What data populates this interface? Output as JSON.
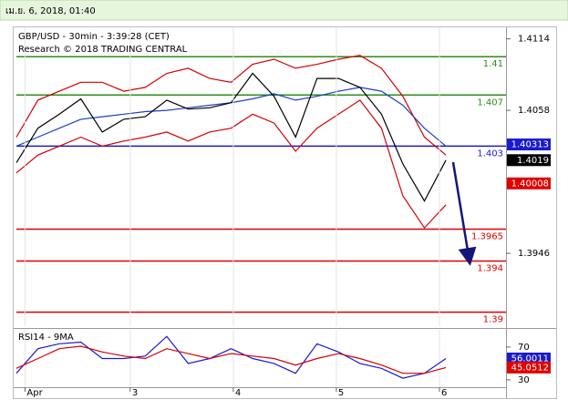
{
  "header": {
    "timestamp": "เม.ย. 6, 2018, 01:40"
  },
  "chart_data": [
    {
      "type": "line",
      "title": "GBP/USD - 30min - 3:39:28 (CET)",
      "subtitle": "Research © 2018 TRADING CENTRAL",
      "x": [
        0,
        10,
        20,
        30,
        40,
        50,
        60,
        70,
        80,
        90,
        100,
        110,
        120,
        130,
        140,
        150,
        160,
        170,
        180,
        190,
        200
      ],
      "xlim": [
        0,
        228
      ],
      "ylim": [
        1.3889,
        1.4123
      ],
      "yticks": [
        1.4114,
        1.4058,
        1.3946
      ],
      "series": [
        {
          "color": "#d40000",
          "values": [
            1.4037,
            1.4066,
            1.4073,
            1.408,
            1.408,
            1.4073,
            1.4076,
            1.4087,
            1.4091,
            1.4083,
            1.408,
            1.4094,
            1.4098,
            1.4091,
            1.4094,
            1.4098,
            1.4101,
            1.4091,
            1.4069,
            1.4037,
            1.4023
          ]
        },
        {
          "color": "#d40000",
          "values": [
            1.4009,
            1.4023,
            1.403,
            1.4037,
            1.403,
            1.4034,
            1.4037,
            1.4041,
            1.4034,
            1.4041,
            1.4044,
            1.4055,
            1.4048,
            1.4026,
            1.4044,
            1.4055,
            1.4066,
            1.4044,
            1.3991,
            1.3966,
            1.3984
          ]
        },
        {
          "color": "#1f3fbf",
          "values": [
            1.403,
            1.4037,
            1.4044,
            1.4051,
            1.4053,
            1.4055,
            1.4057,
            1.4058,
            1.406,
            1.4062,
            1.4064,
            1.4067,
            1.4071,
            1.4066,
            1.4069,
            1.4073,
            1.4076,
            1.4073,
            1.4062,
            1.4044,
            1.403
          ]
        },
        {
          "color": "#000000",
          "values": [
            1.4017,
            1.4044,
            1.4055,
            1.4067,
            1.4041,
            1.4051,
            1.4053,
            1.4066,
            1.4059,
            1.406,
            1.4064,
            1.4087,
            1.4069,
            1.4037,
            1.4083,
            1.4083,
            1.4076,
            1.4055,
            1.4016,
            1.3987,
            1.4019
          ]
        }
      ],
      "levels": [
        {
          "value": 1.41,
          "color": "#2e8b1e"
        },
        {
          "value": 1.407,
          "color": "#2e8b1e"
        },
        {
          "value": 1.403,
          "color": "#1a1ad0"
        },
        {
          "value": 1.3965,
          "color": "#e00000"
        },
        {
          "value": 1.394,
          "color": "#e00000"
        },
        {
          "value": 1.39,
          "color": "#e00000"
        }
      ],
      "readouts": [
        {
          "value": 1.40313,
          "color": "#1a1ad0"
        },
        {
          "value": 1.4019,
          "color": "#000000"
        },
        {
          "value": 1.40008,
          "color": "#e00000"
        }
      ]
    },
    {
      "type": "line",
      "title": "RSI14 - 9MA",
      "xlim": [
        0,
        228
      ],
      "xticks": [
        {
          "value": 4,
          "label": "Apr"
        },
        {
          "value": 53,
          "label": "3"
        },
        {
          "value": 101,
          "label": "4"
        },
        {
          "value": 149,
          "label": "5"
        },
        {
          "value": 197,
          "label": "6"
        }
      ],
      "grid": true,
      "ylim": [
        21,
        91
      ],
      "yticks": [
        70,
        30
      ],
      "series": [
        {
          "color": "#1a1ad0",
          "values": [
            38,
            68,
            74,
            76,
            56,
            56,
            59,
            83,
            50,
            56,
            68,
            56,
            50,
            38,
            74,
            64,
            50,
            44,
            32,
            38,
            56
          ]
        },
        {
          "color": "#d40000",
          "values": [
            44,
            56,
            68,
            71,
            64,
            59,
            56,
            68,
            62,
            56,
            62,
            59,
            56,
            48,
            56,
            62,
            56,
            48,
            38,
            38,
            45
          ]
        }
      ],
      "readouts": [
        {
          "value": 56.0011,
          "color": "#1a1ad0"
        },
        {
          "value": 45.0512,
          "color": "#e00000"
        }
      ]
    }
  ]
}
